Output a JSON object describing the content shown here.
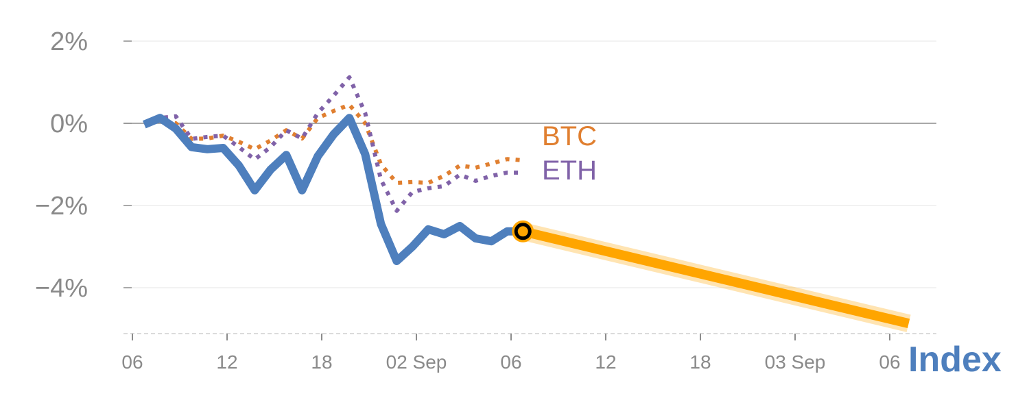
{
  "chart_data": {
    "type": "line",
    "title": "",
    "xlabel": "",
    "ylabel": "",
    "ylim": [
      -5.1,
      2.2
    ],
    "xlim_hours": [
      -0.5,
      51.5
    ],
    "y_ticks": [
      {
        "value": 2,
        "label": "2%"
      },
      {
        "value": 0,
        "label": "0%"
      },
      {
        "value": -2,
        "label": "−2%"
      },
      {
        "value": -4,
        "label": "−4%"
      }
    ],
    "x_ticks": [
      {
        "hour": 0,
        "label": "06"
      },
      {
        "hour": 6,
        "label": "12"
      },
      {
        "hour": 12,
        "label": "18"
      },
      {
        "hour": 18,
        "label": "02 Sep"
      },
      {
        "hour": 24,
        "label": "06"
      },
      {
        "hour": 30,
        "label": "12"
      },
      {
        "hour": 36,
        "label": "18"
      },
      {
        "hour": 42,
        "label": "03 Sep"
      },
      {
        "hour": 48,
        "label": "06"
      }
    ],
    "x_start_hour": 0.75,
    "x_step_hours": 1,
    "series": [
      {
        "name": "BTC",
        "color": "#e07f30",
        "style": "dotted",
        "values": [
          0,
          0.07,
          0,
          -0.38,
          -0.37,
          -0.3,
          -0.45,
          -0.63,
          -0.42,
          -0.17,
          -0.37,
          0.13,
          0.3,
          0.45,
          0,
          -1.0,
          -1.45,
          -1.43,
          -1.45,
          -1.28,
          -1.03,
          -1.08,
          -0.98,
          -0.87,
          -0.9
        ]
      },
      {
        "name": "ETH",
        "color": "#8062a8",
        "style": "dotted",
        "values": [
          0,
          0.13,
          0.17,
          -0.38,
          -0.33,
          -0.3,
          -0.58,
          -0.88,
          -0.58,
          -0.17,
          -0.37,
          0.25,
          0.67,
          1.12,
          0.25,
          -1.37,
          -2.13,
          -1.67,
          -1.58,
          -1.53,
          -1.25,
          -1.4,
          -1.28,
          -1.2,
          -1.2
        ]
      },
      {
        "name": "Index",
        "color": "#4e7fbd",
        "style": "solid",
        "values": [
          -0.03,
          0.13,
          -0.13,
          -0.58,
          -0.63,
          -0.6,
          -1.03,
          -1.63,
          -1.13,
          -0.77,
          -1.63,
          -0.8,
          -0.27,
          0.13,
          -0.75,
          -2.45,
          -3.35,
          -3.0,
          -2.58,
          -2.7,
          -2.5,
          -2.8,
          -2.87,
          -2.63,
          -2.63
        ]
      }
    ],
    "projection": {
      "color": "#ffa500",
      "from": {
        "hour": 24.75,
        "value": -2.63
      },
      "to": {
        "hour": 49.2,
        "value": -4.87
      }
    },
    "labels": {
      "btc": "BTC",
      "eth": "ETH",
      "index": "Index"
    }
  }
}
